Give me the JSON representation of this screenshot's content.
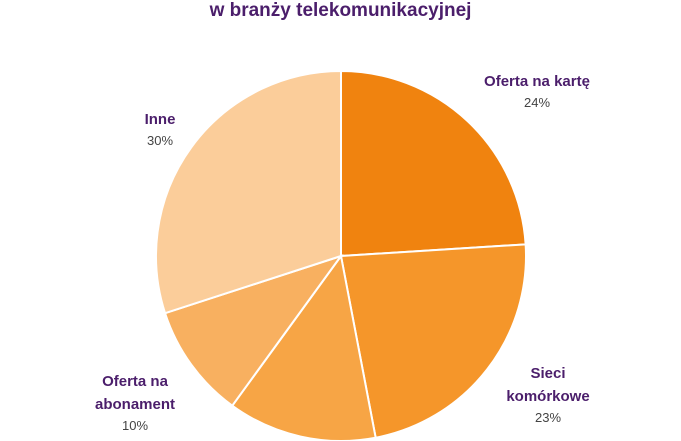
{
  "chart_data": {
    "type": "pie",
    "title": "w branży telekomunikacyjnej",
    "categories": [
      "Oferta na kartę",
      "Sieci komórkowe",
      null,
      "Oferta na abonament",
      "Inne"
    ],
    "values": [
      24,
      23,
      13,
      10,
      30
    ],
    "value_labels": [
      "24%",
      "23%",
      null,
      "10%",
      "30%"
    ],
    "colors": [
      "#f0830f",
      "#f5962a",
      "#f7a545",
      "#f8b060",
      "#fbcd9a"
    ]
  }
}
